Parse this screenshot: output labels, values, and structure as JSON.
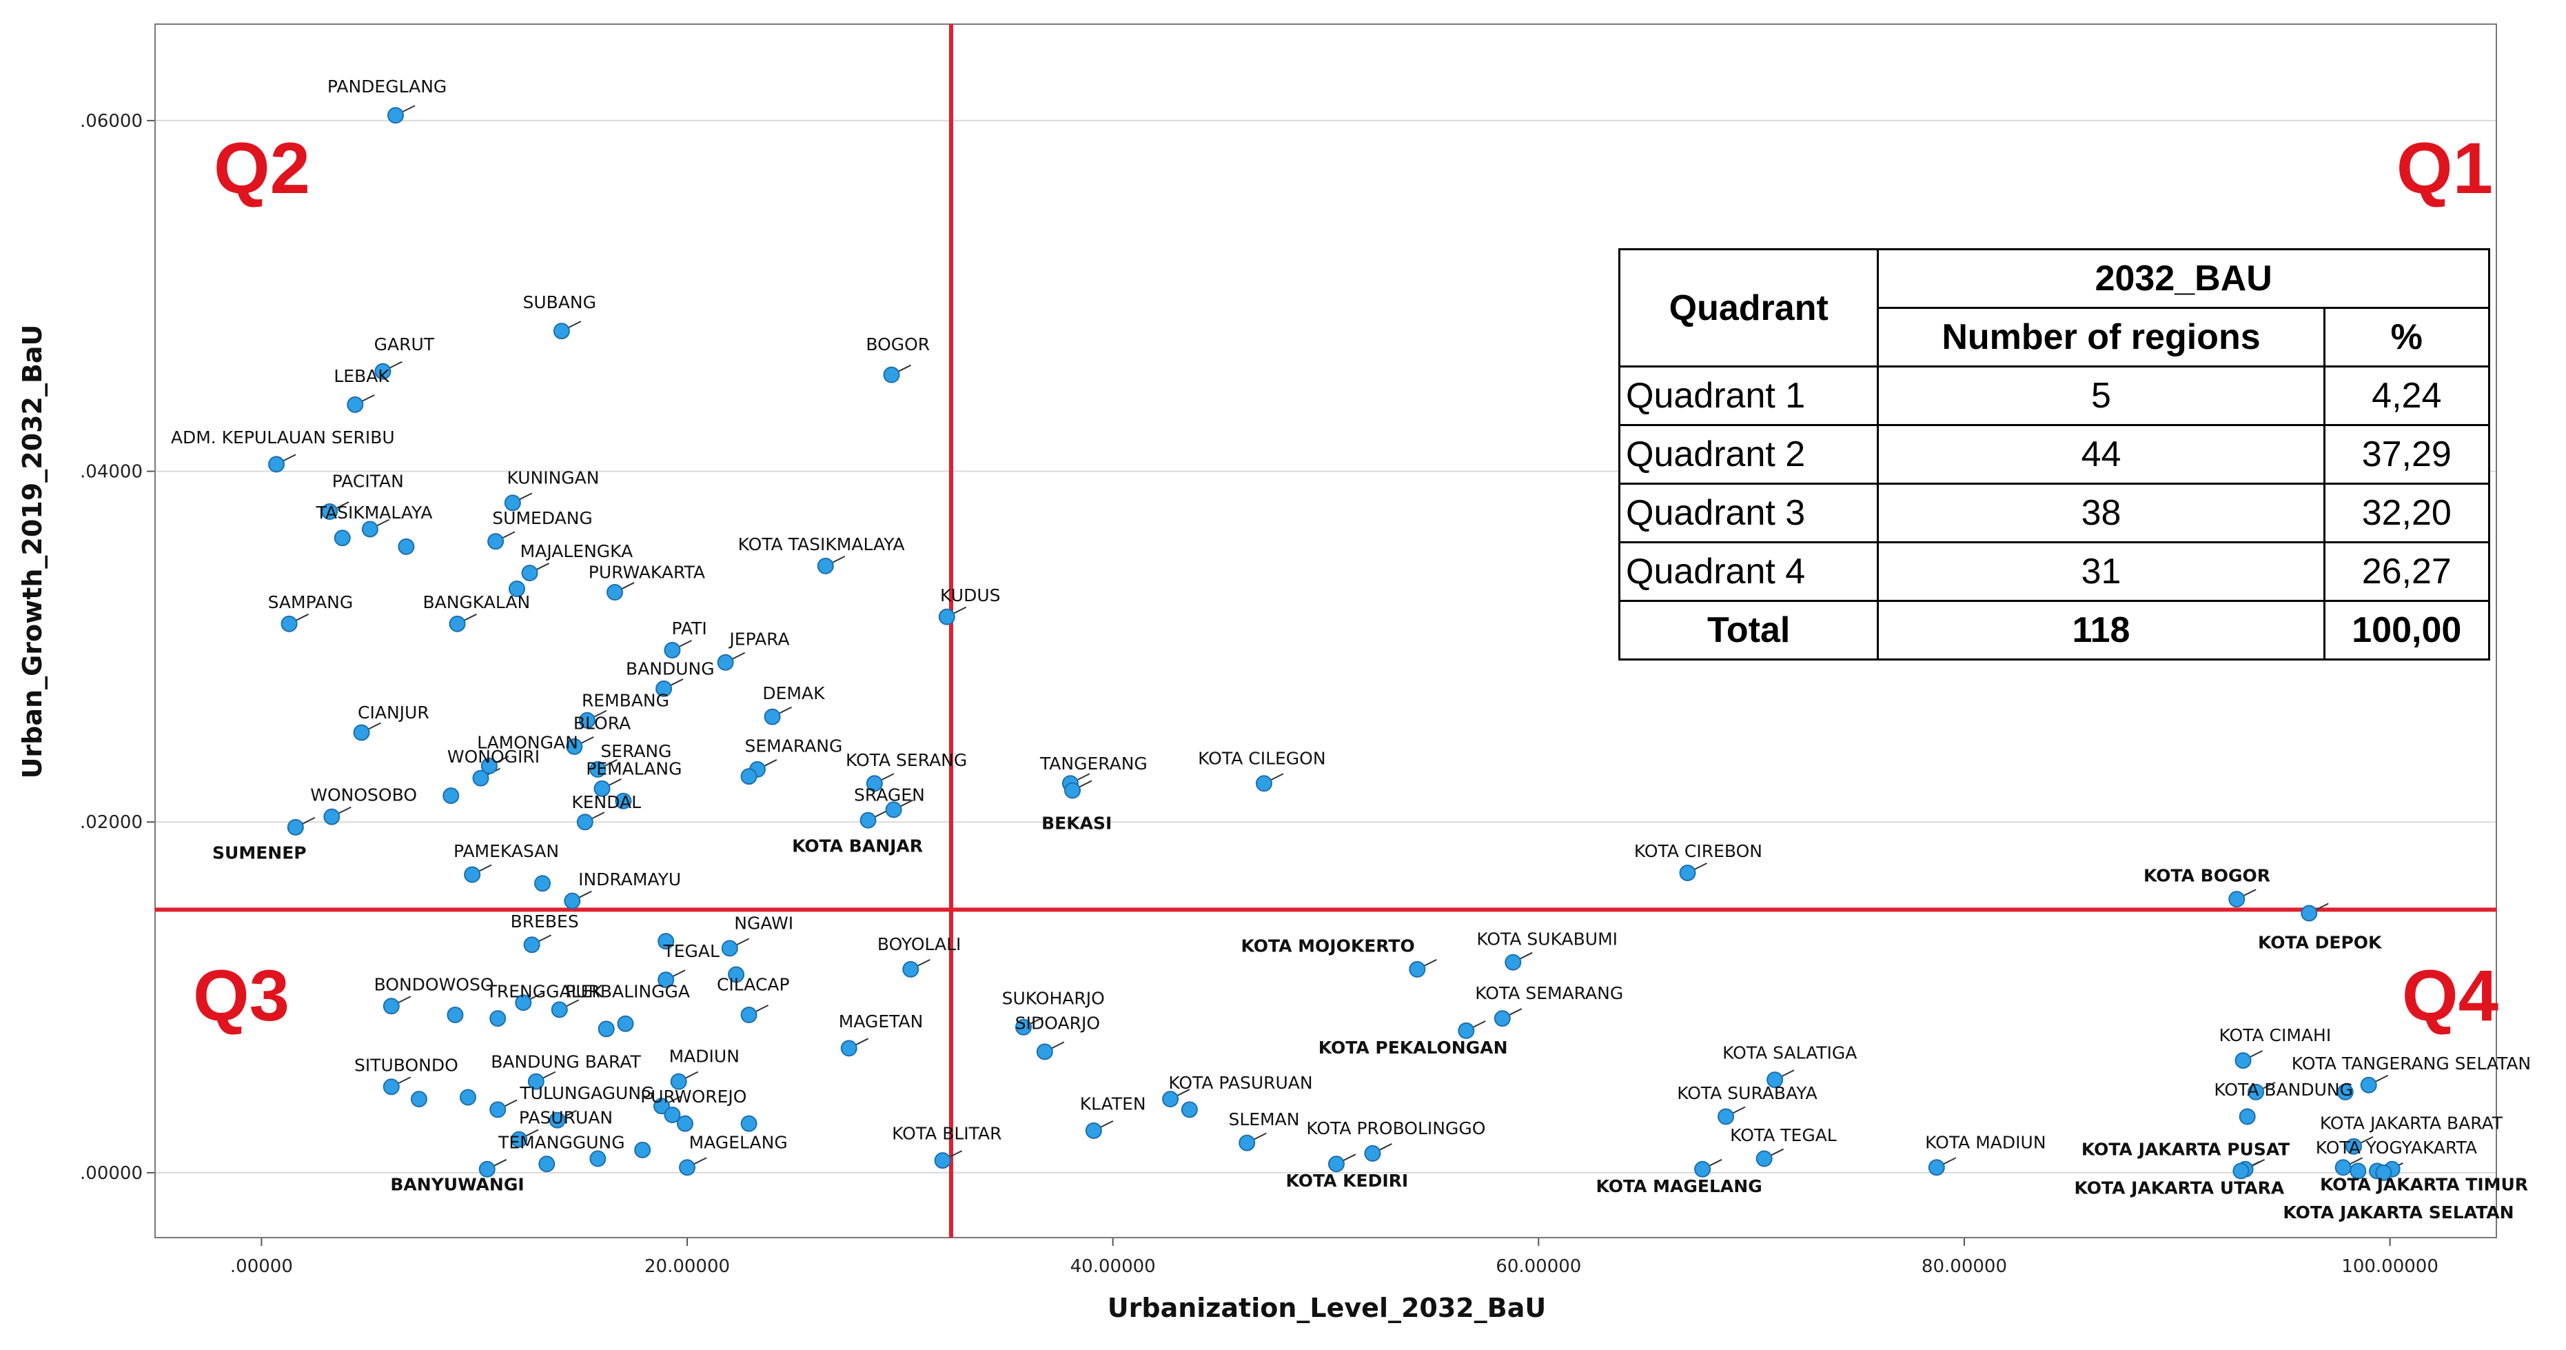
{
  "chart_data": {
    "type": "scatter",
    "title": "",
    "xlabel": "Urbanization_Level_2032_BaU",
    "ylabel": "Urban_Growth_2019_2032_BaU",
    "xlim": [
      -5,
      105
    ],
    "ylim": [
      -0.0037,
      0.0655
    ],
    "x_ticks": [
      0,
      20,
      40,
      60,
      80,
      100
    ],
    "x_tick_labels": [
      ".00000",
      "20.00000",
      "40.00000",
      "60.00000",
      "80.00000",
      "100.00000"
    ],
    "y_ticks": [
      0,
      0.02,
      0.04,
      0.06
    ],
    "y_tick_labels": [
      ".00000",
      ".02000",
      ".04000",
      ".06000"
    ],
    "gridlines": "horizontal",
    "reference_lines": {
      "x": 32.4,
      "y": 0.015,
      "color": "#e0202e"
    },
    "quadrant_labels": [
      {
        "text": "Q1",
        "position": "top-right"
      },
      {
        "text": "Q2",
        "position": "top-left"
      },
      {
        "text": "Q3",
        "position": "bottom-left"
      },
      {
        "text": "Q4",
        "position": "bottom-right"
      }
    ],
    "point_color": "#2e9fe6",
    "label_bold_color": "#000000",
    "points": [
      {
        "x": 6.3,
        "y": 0.0603,
        "label": "PANDEGLANG",
        "lx": 5.9,
        "ly": 0.0616
      },
      {
        "x": 14.1,
        "y": 0.048,
        "label": "SUBANG",
        "lx": 14.0,
        "ly": 0.0493
      },
      {
        "x": 5.7,
        "y": 0.0457,
        "label": "GARUT",
        "lx": 6.7,
        "ly": 0.0469
      },
      {
        "x": 4.4,
        "y": 0.0438,
        "label": "LEBAK",
        "lx": 4.7,
        "ly": 0.0451
      },
      {
        "x": 29.6,
        "y": 0.0455,
        "label": "BOGOR",
        "lx": 29.9,
        "ly": 0.0469
      },
      {
        "x": 0.7,
        "y": 0.0404,
        "label": "ADM. KEPULAUAN SERIBU",
        "lx": 1.0,
        "ly": 0.0416
      },
      {
        "x": 3.2,
        "y": 0.0377,
        "label": "PACITAN",
        "lx": 5.0,
        "ly": 0.0391
      },
      {
        "x": 11.8,
        "y": 0.0382,
        "label": "KUNINGAN",
        "lx": 13.7,
        "ly": 0.0393
      },
      {
        "x": 5.1,
        "y": 0.0367,
        "label": "TASIKMALAYA",
        "lx": 5.3,
        "ly": 0.0373
      },
      {
        "x": 3.8,
        "y": 0.0362,
        "label": "",
        "lx": 0,
        "ly": 0
      },
      {
        "x": 6.8,
        "y": 0.0357,
        "label": "",
        "lx": 0,
        "ly": 0
      },
      {
        "x": 11.0,
        "y": 0.036,
        "label": "SUMEDANG",
        "lx": 13.2,
        "ly": 0.037
      },
      {
        "x": 12.6,
        "y": 0.0342,
        "label": "MAJALENGKA",
        "lx": 14.8,
        "ly": 0.0351
      },
      {
        "x": 12.0,
        "y": 0.0333,
        "label": "",
        "lx": 0,
        "ly": 0
      },
      {
        "x": 26.5,
        "y": 0.0346,
        "label": "KOTA TASIKMALAYA",
        "lx": 26.3,
        "ly": 0.0355
      },
      {
        "x": 16.6,
        "y": 0.0331,
        "label": "PURWAKARTA",
        "lx": 18.1,
        "ly": 0.0339
      },
      {
        "x": 32.2,
        "y": 0.0317,
        "label": "KUDUS",
        "lx": 33.3,
        "ly": 0.0326
      },
      {
        "x": 1.3,
        "y": 0.0313,
        "label": "SAMPANG",
        "lx": 2.3,
        "ly": 0.0322
      },
      {
        "x": 9.2,
        "y": 0.0313,
        "label": "BANGKALAN",
        "lx": 10.1,
        "ly": 0.0322
      },
      {
        "x": 19.3,
        "y": 0.0298,
        "label": "PATI",
        "lx": 20.1,
        "ly": 0.0307
      },
      {
        "x": 21.8,
        "y": 0.0291,
        "label": "JEPARA",
        "lx": 23.4,
        "ly": 0.0301
      },
      {
        "x": 18.9,
        "y": 0.0276,
        "label": "BANDUNG",
        "lx": 19.2,
        "ly": 0.0284
      },
      {
        "x": 24.0,
        "y": 0.026,
        "label": "DEMAK",
        "lx": 25.0,
        "ly": 0.027
      },
      {
        "x": 15.3,
        "y": 0.0258,
        "label": "REMBANG",
        "lx": 17.1,
        "ly": 0.0266
      },
      {
        "x": 4.7,
        "y": 0.0251,
        "label": "CIANJUR",
        "lx": 6.2,
        "ly": 0.0259
      },
      {
        "x": 14.7,
        "y": 0.0243,
        "label": "BLORA",
        "lx": 16.0,
        "ly": 0.0253
      },
      {
        "x": 10.7,
        "y": 0.0232,
        "label": "LAMONGAN",
        "lx": 12.5,
        "ly": 0.0242
      },
      {
        "x": 15.8,
        "y": 0.023,
        "label": "SERANG",
        "lx": 17.6,
        "ly": 0.0237
      },
      {
        "x": 23.3,
        "y": 0.023,
        "label": "SEMARANG",
        "lx": 25.0,
        "ly": 0.024
      },
      {
        "x": 22.9,
        "y": 0.0226,
        "label": "",
        "lx": 0,
        "ly": 0
      },
      {
        "x": 28.8,
        "y": 0.0222,
        "label": "KOTA SERANG",
        "lx": 30.3,
        "ly": 0.0232
      },
      {
        "x": 10.3,
        "y": 0.0225,
        "label": "WONOGIRI",
        "lx": 10.9,
        "ly": 0.0234
      },
      {
        "x": 16.0,
        "y": 0.0219,
        "label": "PEMALANG",
        "lx": 17.5,
        "ly": 0.0227
      },
      {
        "x": 8.9,
        "y": 0.0215,
        "label": "",
        "lx": 0,
        "ly": 0
      },
      {
        "x": 17.0,
        "y": 0.0212,
        "label": "",
        "lx": 0,
        "ly": 0
      },
      {
        "x": 38.0,
        "y": 0.0222,
        "label": "TANGERANG",
        "lx": 39.1,
        "ly": 0.023
      },
      {
        "x": 38.1,
        "y": 0.0218,
        "label": "BEKASI",
        "lx": 38.3,
        "ly": 0.0196,
        "bold": true
      },
      {
        "x": 47.1,
        "y": 0.0222,
        "label": "KOTA CILEGON",
        "lx": 47.0,
        "ly": 0.0233
      },
      {
        "x": 3.3,
        "y": 0.0203,
        "label": "WONOSOBO",
        "lx": 4.8,
        "ly": 0.0212
      },
      {
        "x": 15.2,
        "y": 0.02,
        "label": "KENDAL",
        "lx": 16.2,
        "ly": 0.0208
      },
      {
        "x": 29.7,
        "y": 0.0207,
        "label": "SRAGEN",
        "lx": 29.5,
        "ly": 0.0212
      },
      {
        "x": 28.5,
        "y": 0.0201,
        "label": "KOTA BANJAR",
        "lx": 28.0,
        "ly": 0.0183,
        "bold": true
      },
      {
        "x": 1.6,
        "y": 0.0197,
        "label": "SUMENEP",
        "lx": -0.1,
        "ly": 0.0179,
        "bold": true
      },
      {
        "x": 9.9,
        "y": 0.017,
        "label": "PAMEKASAN",
        "lx": 11.5,
        "ly": 0.018
      },
      {
        "x": 13.2,
        "y": 0.0165,
        "label": "",
        "lx": 0,
        "ly": 0
      },
      {
        "x": 14.6,
        "y": 0.0155,
        "label": "INDRAMAYU",
        "lx": 17.3,
        "ly": 0.0164
      },
      {
        "x": 67.0,
        "y": 0.0171,
        "label": "KOTA CIREBON",
        "lx": 67.5,
        "ly": 0.018
      },
      {
        "x": 92.8,
        "y": 0.0156,
        "label": "KOTA BOGOR",
        "lx": 91.4,
        "ly": 0.0166,
        "bold": true
      },
      {
        "x": 96.2,
        "y": 0.0148,
        "label": "KOTA DEPOK",
        "lx": 96.7,
        "ly": 0.0128,
        "bold": true
      },
      {
        "x": 12.7,
        "y": 0.013,
        "label": "BREBES",
        "lx": 13.3,
        "ly": 0.014
      },
      {
        "x": 19.0,
        "y": 0.0132,
        "label": "",
        "lx": 0,
        "ly": 0
      },
      {
        "x": 22.0,
        "y": 0.0128,
        "label": "NGAWI",
        "lx": 23.6,
        "ly": 0.0139
      },
      {
        "x": 19.0,
        "y": 0.011,
        "label": "TEGAL",
        "lx": 20.2,
        "ly": 0.0123
      },
      {
        "x": 22.3,
        "y": 0.0113,
        "label": "",
        "lx": 0,
        "ly": 0
      },
      {
        "x": 30.5,
        "y": 0.0116,
        "label": "BOYOLALI",
        "lx": 30.9,
        "ly": 0.0127
      },
      {
        "x": 54.3,
        "y": 0.0116,
        "label": "KOTA MOJOKERTO",
        "lx": 50.1,
        "ly": 0.0126,
        "bold": true
      },
      {
        "x": 58.8,
        "y": 0.012,
        "label": "KOTA SUKABUMI",
        "lx": 60.4,
        "ly": 0.013
      },
      {
        "x": 6.1,
        "y": 0.0095,
        "label": "BONDOWOSO",
        "lx": 8.1,
        "ly": 0.0104
      },
      {
        "x": 9.1,
        "y": 0.009,
        "label": "",
        "lx": 0,
        "ly": 0
      },
      {
        "x": 12.3,
        "y": 0.0097,
        "label": "TRENGGALEK",
        "lx": 13.3,
        "ly": 0.01
      },
      {
        "x": 11.1,
        "y": 0.0088,
        "label": "",
        "lx": 0,
        "ly": 0
      },
      {
        "x": 14.0,
        "y": 0.0093,
        "label": "PURBALINGGA",
        "lx": 17.2,
        "ly": 0.01
      },
      {
        "x": 17.1,
        "y": 0.0085,
        "label": "",
        "lx": 0,
        "ly": 0
      },
      {
        "x": 16.2,
        "y": 0.0082,
        "label": "",
        "lx": 0,
        "ly": 0
      },
      {
        "x": 22.9,
        "y": 0.009,
        "label": "CILACAP",
        "lx": 23.1,
        "ly": 0.0104
      },
      {
        "x": 35.8,
        "y": 0.0083,
        "label": "SUKOHARJO",
        "lx": 37.2,
        "ly": 0.0096
      },
      {
        "x": 36.8,
        "y": 0.0069,
        "label": "SIDOARJO",
        "lx": 37.4,
        "ly": 0.0082
      },
      {
        "x": 27.6,
        "y": 0.0071,
        "label": "MAGETAN",
        "lx": 29.1,
        "ly": 0.0083
      },
      {
        "x": 56.6,
        "y": 0.0081,
        "label": "KOTA PEKALONGAN",
        "lx": 54.1,
        "ly": 0.0068,
        "bold": true
      },
      {
        "x": 58.3,
        "y": 0.0088,
        "label": "KOTA SEMARANG",
        "lx": 60.5,
        "ly": 0.0099
      },
      {
        "x": 6.1,
        "y": 0.0049,
        "label": "SITUBONDO",
        "lx": 6.8,
        "ly": 0.0058
      },
      {
        "x": 7.4,
        "y": 0.0042,
        "label": "",
        "lx": 0,
        "ly": 0
      },
      {
        "x": 9.7,
        "y": 0.0043,
        "label": "",
        "lx": 0,
        "ly": 0
      },
      {
        "x": 12.9,
        "y": 0.0052,
        "label": "BANDUNG BARAT",
        "lx": 14.3,
        "ly": 0.006
      },
      {
        "x": 19.6,
        "y": 0.0052,
        "label": "MADIUN",
        "lx": 20.8,
        "ly": 0.0063
      },
      {
        "x": 11.1,
        "y": 0.0036,
        "label": "TULUNGAGUNG",
        "lx": 15.3,
        "ly": 0.0042
      },
      {
        "x": 13.9,
        "y": 0.003,
        "label": "PASURUAN",
        "lx": 14.3,
        "ly": 0.0028
      },
      {
        "x": 18.8,
        "y": 0.0038,
        "label": "PURWOREJO",
        "lx": 20.3,
        "ly": 0.004
      },
      {
        "x": 19.3,
        "y": 0.0033,
        "label": "",
        "lx": 0,
        "ly": 0
      },
      {
        "x": 19.9,
        "y": 0.0028,
        "label": "",
        "lx": 0,
        "ly": 0
      },
      {
        "x": 22.9,
        "y": 0.0028,
        "label": "",
        "lx": 0,
        "ly": 0
      },
      {
        "x": 12.1,
        "y": 0.0019,
        "label": "TEMANGGUNG",
        "lx": 14.1,
        "ly": 0.0014
      },
      {
        "x": 15.8,
        "y": 0.0008,
        "label": "",
        "lx": 0,
        "ly": 0
      },
      {
        "x": 17.9,
        "y": 0.0013,
        "label": "",
        "lx": 0,
        "ly": 0
      },
      {
        "x": 20.0,
        "y": 0.0003,
        "label": "MAGELANG",
        "lx": 22.4,
        "ly": 0.0014
      },
      {
        "x": 13.4,
        "y": 0.0005,
        "label": "",
        "lx": 0,
        "ly": 0
      },
      {
        "x": 10.6,
        "y": 0.0002,
        "label": "BANYUWANGI",
        "lx": 9.2,
        "ly": -0.001,
        "bold": true
      },
      {
        "x": 32.0,
        "y": 0.0007,
        "label": "KOTA BLITAR",
        "lx": 32.2,
        "ly": 0.0019
      },
      {
        "x": 42.7,
        "y": 0.0042,
        "label": "KOTA PASURUAN",
        "lx": 46.0,
        "ly": 0.0048
      },
      {
        "x": 43.6,
        "y": 0.0036,
        "label": "",
        "lx": 0,
        "ly": 0
      },
      {
        "x": 39.1,
        "y": 0.0024,
        "label": "KLATEN",
        "lx": 40.0,
        "ly": 0.0036
      },
      {
        "x": 46.3,
        "y": 0.0017,
        "label": "SLEMAN",
        "lx": 47.1,
        "ly": 0.0027
      },
      {
        "x": 52.2,
        "y": 0.0011,
        "label": "KOTA PROBOLINGGO",
        "lx": 53.3,
        "ly": 0.0022
      },
      {
        "x": 50.5,
        "y": 0.0005,
        "label": "KOTA KEDIRI",
        "lx": 51.0,
        "ly": -0.0008,
        "bold": true
      },
      {
        "x": 71.1,
        "y": 0.0053,
        "label": "KOTA SALATIGA",
        "lx": 71.8,
        "ly": 0.0065
      },
      {
        "x": 68.8,
        "y": 0.0032,
        "label": "KOTA SURABAYA",
        "lx": 69.8,
        "ly": 0.0042
      },
      {
        "x": 70.6,
        "y": 0.0008,
        "label": "KOTA TEGAL",
        "lx": 71.5,
        "ly": 0.0018
      },
      {
        "x": 67.7,
        "y": 0.0002,
        "label": "KOTA MAGELANG",
        "lx": 66.6,
        "ly": -0.0011,
        "bold": true
      },
      {
        "x": 78.7,
        "y": 0.0003,
        "label": "KOTA MADIUN",
        "lx": 81.0,
        "ly": 0.0014
      },
      {
        "x": 93.1,
        "y": 0.0064,
        "label": "KOTA CIMAHI",
        "lx": 94.6,
        "ly": 0.0075
      },
      {
        "x": 93.7,
        "y": 0.0046,
        "label": "KOTA BANDUNG",
        "lx": 95.0,
        "ly": 0.0044
      },
      {
        "x": 93.3,
        "y": 0.0032,
        "label": "",
        "lx": 0,
        "ly": 0
      },
      {
        "x": 99.0,
        "y": 0.005,
        "label": "KOTA TANGERANG SELATAN",
        "lx": 101.0,
        "ly": 0.0059
      },
      {
        "x": 97.9,
        "y": 0.0046,
        "label": "",
        "lx": 0,
        "ly": 0
      },
      {
        "x": 98.3,
        "y": 0.0015,
        "label": "KOTA JAKARTA BARAT",
        "lx": 101.0,
        "ly": 0.0025
      },
      {
        "x": 97.8,
        "y": 0.0003,
        "label": "KOTA YOGYAKARTA",
        "lx": 100.3,
        "ly": 0.0011
      },
      {
        "x": 98.5,
        "y": 0.0001,
        "label": "",
        "lx": 0,
        "ly": 0
      },
      {
        "x": 99.4,
        "y": 0.0001,
        "label": "",
        "lx": 0,
        "ly": 0
      },
      {
        "x": 100.1,
        "y": 0.0002,
        "label": "",
        "lx": 0,
        "ly": 0
      },
      {
        "x": 93.2,
        "y": 0.0002,
        "label": "KOTA JAKARTA PUSAT",
        "lx": 90.4,
        "ly": 0.001,
        "bold": true
      },
      {
        "x": 93.0,
        "y": 0.0001,
        "label": "KOTA JAKARTA UTARA",
        "lx": 90.1,
        "ly": -0.0012,
        "bold": true
      },
      {
        "x": 99.7,
        "y": 0.0,
        "label": "KOTA JAKARTA TIMUR",
        "lx": 101.6,
        "ly": -0.001,
        "bold": true
      },
      {
        "x": 99.7,
        "y": 0.0,
        "label": "KOTA JAKARTA SELATAN",
        "lx": 100.4,
        "ly": -0.0026,
        "bold": true
      }
    ]
  },
  "table": {
    "header_col1": "Quadrant",
    "header_group": "2032_BAU",
    "header_col2": "Number of regions",
    "header_col3": "%",
    "rows": [
      {
        "quadrant": "Quadrant 1",
        "number": "5",
        "percent": "4,24"
      },
      {
        "quadrant": "Quadrant 2",
        "number": "44",
        "percent": "37,29"
      },
      {
        "quadrant": "Quadrant 3",
        "number": "38",
        "percent": "32,20"
      },
      {
        "quadrant": "Quadrant 4",
        "number": "31",
        "percent": "26,27"
      }
    ],
    "total": {
      "label": "Total",
      "number": "118",
      "percent": "100,00"
    }
  }
}
